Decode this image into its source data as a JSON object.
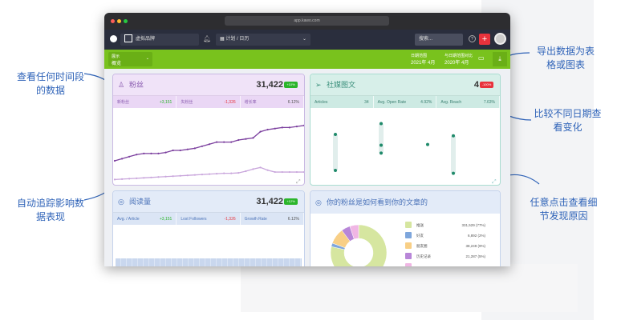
{
  "annotations": {
    "any_period": "查看任何时间段的数据",
    "auto_track": "自动追踪影响数据表现",
    "export": "导出数据为表格或图表",
    "compare": "比较不同日期查看变化",
    "click_detail": "任意点击查看细节发现原因"
  },
  "browser": {
    "url": "app.kawo.com"
  },
  "nav": {
    "brand": "虚拟品牌",
    "module": "计划 / 日历",
    "search_placeholder": "搜索...",
    "add_color": "#e8323c"
  },
  "filter_bar": {
    "view_label": "展示",
    "view_value": "概览",
    "range_label": "日期范围",
    "range_value": "2021年 4月",
    "compare_label": "与日期范围对比",
    "compare_value": "2020年 4月",
    "accent": "#79c21d"
  },
  "cards": {
    "followers": {
      "title": "粉丝",
      "total": "31,422",
      "badge": "+10%",
      "stats": [
        {
          "label": "新粉丝",
          "value": "+3,151"
        },
        {
          "label": "失粉丝",
          "value": "-1,326"
        },
        {
          "label": "增长率",
          "value": "6.12%"
        }
      ]
    },
    "social": {
      "title": "社媒图文",
      "total": "4",
      "badge": "-100%",
      "stats": [
        {
          "label": "Articles",
          "value": "34"
        },
        {
          "label": "Avg. Open Rate",
          "value": "4.92%"
        },
        {
          "label": "Avg. Reach",
          "value": "7.63%"
        }
      ]
    },
    "reads": {
      "title": "阅读量",
      "total": "31,422",
      "badge": "+12%",
      "stats": [
        {
          "label": "Avg. / Article",
          "value": "+3,151"
        },
        {
          "label": "Lost Followers",
          "value": "-1,326"
        },
        {
          "label": "Growth Rate",
          "value": "6.12%"
        }
      ]
    },
    "sources": {
      "title": "你的粉丝是如何看到你的文章的",
      "legend": [
        {
          "label": "推送",
          "value": "331,529 (77%)",
          "color": "#d6e6a0"
        },
        {
          "label": "好友",
          "value": "6,892 (2%)",
          "color": "#7ea6dc"
        },
        {
          "label": "朋友圈",
          "value": "38,249 (9%)",
          "color": "#f8cf86"
        },
        {
          "label": "历史记录",
          "value": "21,287 (5%)",
          "color": "#b886d8"
        },
        {
          "label": "",
          "value": "",
          "color": "#f0b6e4"
        }
      ]
    }
  },
  "chart_data": [
    {
      "type": "line",
      "series": [
        {
          "values": [
            10,
            11,
            12,
            13,
            13.5,
            13.5,
            13.5,
            14,
            15,
            15,
            15.5,
            16,
            17,
            18,
            19,
            19,
            19,
            20,
            20.5,
            21,
            24,
            25,
            25.5,
            26,
            26,
            26.5,
            27
          ]
        },
        {
          "values": [
            1,
            1.2,
            1.4,
            1.6,
            1.8,
            2,
            2.2,
            2.4,
            2.6,
            2.8,
            3,
            3.2,
            3.4,
            3.6,
            3.8,
            4,
            4,
            4.2,
            5,
            6,
            6.8,
            5.5,
            4.6,
            4.6,
            4.6,
            4.6,
            4.6
          ]
        }
      ]
    },
    {
      "type": "scatter",
      "columns": [
        [
          0.3,
          0.8
        ],
        [
          0.15,
          0.45,
          0.56
        ],
        [
          0.44
        ],
        [
          0.32,
          0.84
        ]
      ]
    },
    {
      "type": "pie",
      "values": [
        77,
        2,
        9,
        5,
        5
      ]
    }
  ]
}
